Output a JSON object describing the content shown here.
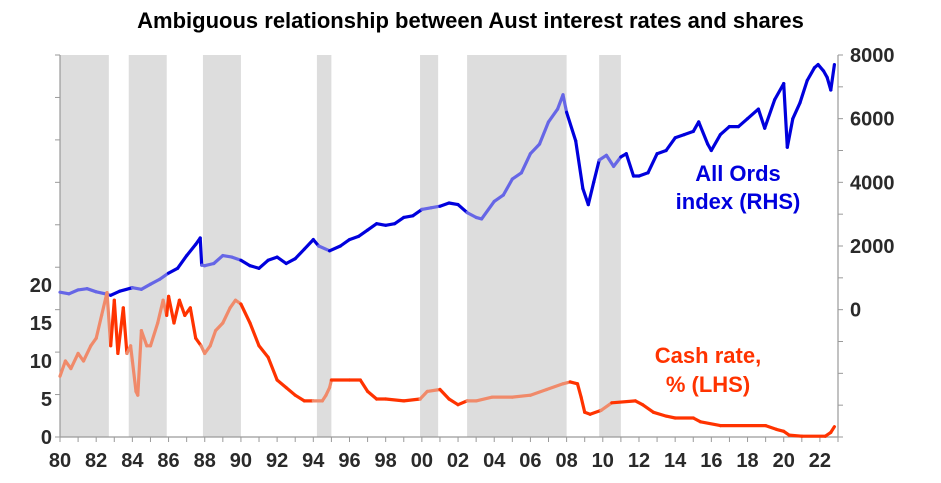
{
  "chart_data": {
    "type": "line",
    "title": "Ambiguous relationship between Aust interest rates and shares",
    "x_ticks": [
      "80",
      "82",
      "84",
      "86",
      "88",
      "90",
      "92",
      "94",
      "96",
      "98",
      "00",
      "02",
      "04",
      "06",
      "08",
      "10",
      "12",
      "14",
      "16",
      "18",
      "20",
      "22"
    ],
    "x_range": [
      1980,
      2023
    ],
    "left_axis": {
      "ticks": [
        0,
        5,
        10,
        15,
        20
      ],
      "range": [
        0,
        20
      ]
    },
    "right_axis": {
      "ticks": [
        0,
        2000,
        4000,
        6000,
        8000
      ],
      "range": [
        -4000,
        8000
      ]
    },
    "shaded_periods": [
      [
        1980.0,
        1982.7
      ],
      [
        1983.8,
        1985.9
      ],
      [
        1987.9,
        1990.0
      ],
      [
        1994.2,
        1995.0
      ],
      [
        1999.9,
        2000.9
      ],
      [
        2002.5,
        2008.0
      ],
      [
        2009.8,
        2011.0
      ]
    ],
    "series": [
      {
        "name": "All Ords index (RHS)",
        "axis": "right",
        "color": "#0000dd",
        "points": [
          [
            1980.0,
            550
          ],
          [
            1980.5,
            500
          ],
          [
            1981.0,
            620
          ],
          [
            1981.5,
            660
          ],
          [
            1982.0,
            560
          ],
          [
            1982.5,
            500
          ],
          [
            1982.8,
            450
          ],
          [
            1983.3,
            580
          ],
          [
            1984.0,
            690
          ],
          [
            1984.5,
            640
          ],
          [
            1985.0,
            800
          ],
          [
            1985.5,
            950
          ],
          [
            1986.0,
            1150
          ],
          [
            1986.5,
            1300
          ],
          [
            1987.0,
            1700
          ],
          [
            1987.5,
            2050
          ],
          [
            1987.75,
            2250
          ],
          [
            1987.83,
            1400
          ],
          [
            1988.0,
            1380
          ],
          [
            1988.5,
            1450
          ],
          [
            1989.0,
            1700
          ],
          [
            1989.5,
            1650
          ],
          [
            1990.0,
            1550
          ],
          [
            1990.5,
            1380
          ],
          [
            1991.0,
            1300
          ],
          [
            1991.5,
            1550
          ],
          [
            1992.0,
            1650
          ],
          [
            1992.5,
            1450
          ],
          [
            1993.0,
            1600
          ],
          [
            1993.5,
            1900
          ],
          [
            1994.0,
            2200
          ],
          [
            1994.3,
            2000
          ],
          [
            1994.9,
            1850
          ],
          [
            1995.5,
            2000
          ],
          [
            1996.0,
            2200
          ],
          [
            1996.5,
            2300
          ],
          [
            1997.0,
            2500
          ],
          [
            1997.5,
            2700
          ],
          [
            1998.0,
            2650
          ],
          [
            1998.5,
            2700
          ],
          [
            1999.0,
            2900
          ],
          [
            1999.5,
            2950
          ],
          [
            2000.0,
            3150
          ],
          [
            2000.5,
            3200
          ],
          [
            2001.0,
            3250
          ],
          [
            2001.5,
            3350
          ],
          [
            2002.0,
            3300
          ],
          [
            2002.5,
            3050
          ],
          [
            2003.0,
            2900
          ],
          [
            2003.3,
            2850
          ],
          [
            2004.0,
            3400
          ],
          [
            2004.5,
            3600
          ],
          [
            2005.0,
            4100
          ],
          [
            2005.5,
            4300
          ],
          [
            2006.0,
            4900
          ],
          [
            2006.5,
            5200
          ],
          [
            2007.0,
            5900
          ],
          [
            2007.5,
            6300
          ],
          [
            2007.8,
            6750
          ],
          [
            2008.0,
            6200
          ],
          [
            2008.5,
            5300
          ],
          [
            2008.9,
            3800
          ],
          [
            2009.2,
            3300
          ],
          [
            2009.5,
            4000
          ],
          [
            2009.8,
            4700
          ],
          [
            2010.2,
            4850
          ],
          [
            2010.6,
            4500
          ],
          [
            2011.0,
            4800
          ],
          [
            2011.3,
            4900
          ],
          [
            2011.7,
            4200
          ],
          [
            2012.0,
            4200
          ],
          [
            2012.5,
            4300
          ],
          [
            2013.0,
            4900
          ],
          [
            2013.5,
            5000
          ],
          [
            2014.0,
            5400
          ],
          [
            2014.5,
            5500
          ],
          [
            2015.0,
            5600
          ],
          [
            2015.3,
            5900
          ],
          [
            2015.8,
            5200
          ],
          [
            2016.0,
            5000
          ],
          [
            2016.5,
            5500
          ],
          [
            2017.0,
            5750
          ],
          [
            2017.5,
            5750
          ],
          [
            2018.0,
            6000
          ],
          [
            2018.6,
            6300
          ],
          [
            2018.95,
            5700
          ],
          [
            2019.5,
            6600
          ],
          [
            2020.0,
            7100
          ],
          [
            2020.2,
            5100
          ],
          [
            2020.5,
            6000
          ],
          [
            2020.9,
            6500
          ],
          [
            2021.3,
            7200
          ],
          [
            2021.7,
            7600
          ],
          [
            2021.9,
            7700
          ],
          [
            2022.2,
            7500
          ],
          [
            2022.4,
            7300
          ],
          [
            2022.6,
            6900
          ],
          [
            2022.8,
            7700
          ]
        ]
      },
      {
        "name": "Cash rate, % (LHS)",
        "axis": "left",
        "color": "#ff3300",
        "points": [
          [
            1980.0,
            8
          ],
          [
            1980.3,
            10
          ],
          [
            1980.6,
            9
          ],
          [
            1981.0,
            11
          ],
          [
            1981.3,
            10
          ],
          [
            1981.7,
            12
          ],
          [
            1982.0,
            13
          ],
          [
            1982.3,
            16
          ],
          [
            1982.6,
            19
          ],
          [
            1982.8,
            12
          ],
          [
            1983.0,
            18
          ],
          [
            1983.2,
            11
          ],
          [
            1983.5,
            17
          ],
          [
            1983.7,
            11
          ],
          [
            1983.9,
            12
          ],
          [
            1984.0,
            10
          ],
          [
            1984.2,
            6
          ],
          [
            1984.3,
            5.5
          ],
          [
            1984.5,
            14
          ],
          [
            1984.8,
            12
          ],
          [
            1985.0,
            12
          ],
          [
            1985.4,
            15
          ],
          [
            1985.7,
            18
          ],
          [
            1985.9,
            16
          ],
          [
            1986.0,
            18.5
          ],
          [
            1986.3,
            15
          ],
          [
            1986.6,
            18
          ],
          [
            1986.9,
            16
          ],
          [
            1987.2,
            17
          ],
          [
            1987.5,
            13
          ],
          [
            1987.8,
            12
          ],
          [
            1988.0,
            11
          ],
          [
            1988.3,
            12
          ],
          [
            1988.6,
            14
          ],
          [
            1989.0,
            15
          ],
          [
            1989.4,
            17
          ],
          [
            1989.7,
            18
          ],
          [
            1990.0,
            17.5
          ],
          [
            1990.5,
            15
          ],
          [
            1991.0,
            12
          ],
          [
            1991.5,
            10.5
          ],
          [
            1992.0,
            7.5
          ],
          [
            1992.5,
            6.5
          ],
          [
            1993.0,
            5.5
          ],
          [
            1993.5,
            4.75
          ],
          [
            1994.0,
            4.75
          ],
          [
            1994.5,
            4.75
          ],
          [
            1994.7,
            5.5
          ],
          [
            1994.9,
            6.5
          ],
          [
            1995.0,
            7.5
          ],
          [
            1996.0,
            7.5
          ],
          [
            1996.6,
            7.5
          ],
          [
            1997.0,
            6.0
          ],
          [
            1997.5,
            5.0
          ],
          [
            1998.0,
            5.0
          ],
          [
            1999.0,
            4.75
          ],
          [
            1999.9,
            5.0
          ],
          [
            2000.3,
            6.0
          ],
          [
            2001.0,
            6.25
          ],
          [
            2001.5,
            5.0
          ],
          [
            2002.0,
            4.25
          ],
          [
            2002.5,
            4.75
          ],
          [
            2003.0,
            4.75
          ],
          [
            2003.9,
            5.25
          ],
          [
            2005.0,
            5.25
          ],
          [
            2006.0,
            5.5
          ],
          [
            2006.9,
            6.25
          ],
          [
            2007.8,
            7.0
          ],
          [
            2008.2,
            7.25
          ],
          [
            2008.6,
            7.0
          ],
          [
            2008.8,
            5.25
          ],
          [
            2009.0,
            3.25
          ],
          [
            2009.3,
            3.0
          ],
          [
            2009.9,
            3.5
          ],
          [
            2010.5,
            4.5
          ],
          [
            2011.8,
            4.75
          ],
          [
            2012.2,
            4.25
          ],
          [
            2012.8,
            3.25
          ],
          [
            2013.5,
            2.75
          ],
          [
            2014.0,
            2.5
          ],
          [
            2015.0,
            2.5
          ],
          [
            2015.4,
            2.0
          ],
          [
            2016.5,
            1.5
          ],
          [
            2019.0,
            1.5
          ],
          [
            2019.6,
            1.0
          ],
          [
            2020.0,
            0.75
          ],
          [
            2020.3,
            0.25
          ],
          [
            2021.0,
            0.1
          ],
          [
            2022.3,
            0.1
          ],
          [
            2022.6,
            0.6
          ],
          [
            2022.8,
            1.35
          ]
        ]
      }
    ],
    "annotations": {
      "all_ords_line1": "All Ords",
      "all_ords_line2": "index (RHS)",
      "cash_line1": "Cash rate,",
      "cash_line2": "% (LHS)"
    }
  }
}
